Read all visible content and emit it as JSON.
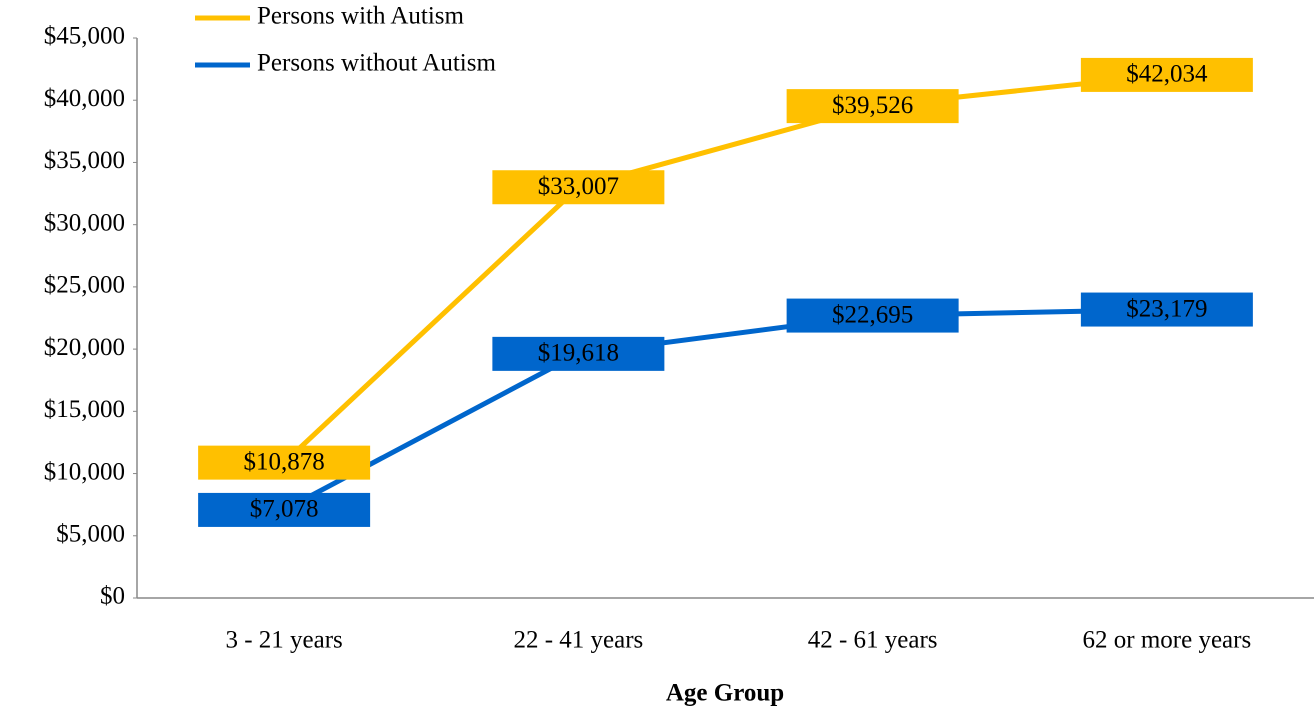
{
  "chart_data": {
    "type": "line",
    "x_label": "Age Group",
    "categories": [
      "3 - 21 years",
      "22 - 41 years",
      "42 - 61 years",
      "62 or more years"
    ],
    "series": [
      {
        "name": "Persons with Autism",
        "color": "#ffc000",
        "values": [
          10878,
          33007,
          39526,
          42034
        ],
        "value_labels": [
          "$10,878",
          "$33,007",
          "$39,526",
          "$42,034"
        ]
      },
      {
        "name": "Persons without Autism",
        "color": "#0066cc",
        "values": [
          7078,
          19618,
          22695,
          23179
        ],
        "value_labels": [
          "$7,078",
          "$19,618",
          "$22,695",
          "$23,179"
        ]
      }
    ],
    "ylim": [
      0,
      45000
    ],
    "yticks": [
      {
        "value": 0,
        "label": "$0"
      },
      {
        "value": 5000,
        "label": "$5,000"
      },
      {
        "value": 10000,
        "label": "$10,000"
      },
      {
        "value": 15000,
        "label": "$15,000"
      },
      {
        "value": 20000,
        "label": "$20,000"
      },
      {
        "value": 25000,
        "label": "$25,000"
      },
      {
        "value": 30000,
        "label": "$30,000"
      },
      {
        "value": 35000,
        "label": "$35,000"
      },
      {
        "value": 40000,
        "label": "$40,000"
      },
      {
        "value": 45000,
        "label": "$45,000"
      }
    ],
    "legend": "top-left",
    "grid": false
  }
}
